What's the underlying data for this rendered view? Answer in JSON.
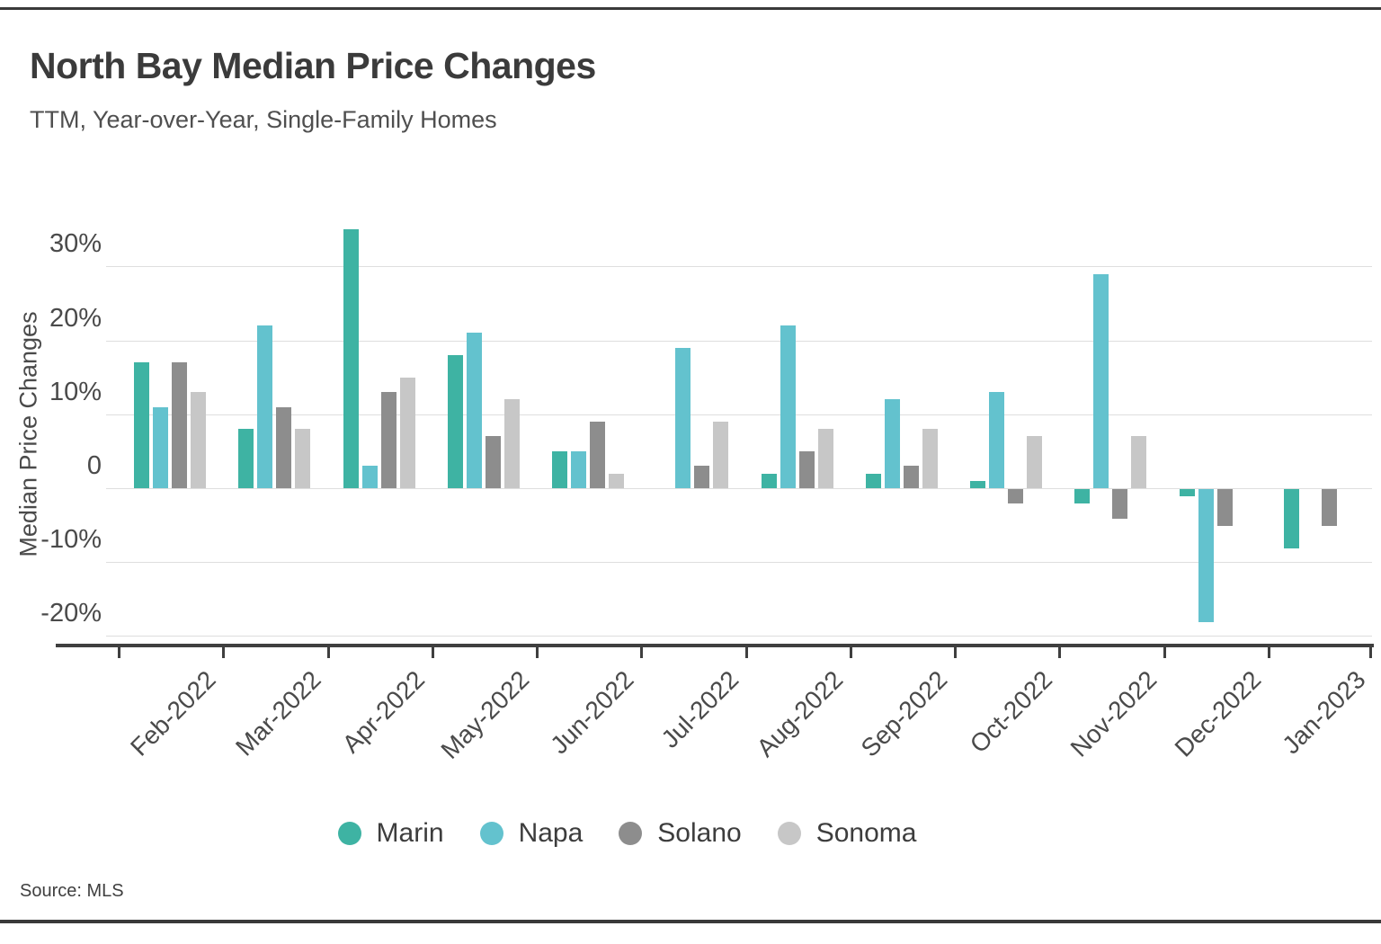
{
  "header": {
    "title": "North Bay Median Price Changes",
    "subtitle": "TTM, Year-over-Year, Single-Family Homes"
  },
  "source": {
    "text": "Source:  MLS"
  },
  "chart_data": {
    "type": "bar",
    "title": "North Bay Median Price Changes",
    "subtitle": "TTM, Year-over-Year, Single-Family Homes",
    "ylabel": "Median Price Changes",
    "xlabel": "",
    "categories": [
      "Feb-2022",
      "Mar-2022",
      "Apr-2022",
      "May-2022",
      "Jun-2022",
      "Jul-2022",
      "Aug-2022",
      "Sep-2022",
      "Oct-2022",
      "Nov-2022",
      "Dec-2022",
      "Jan-2023"
    ],
    "series": [
      {
        "name": "Marin",
        "color": "#3eb3a3",
        "values": [
          17,
          8,
          35,
          18,
          5,
          null,
          2,
          2,
          1,
          -2,
          -1,
          -8
        ]
      },
      {
        "name": "Napa",
        "color": "#63c2ce",
        "values": [
          11,
          22,
          3,
          21,
          5,
          19,
          22,
          12,
          13,
          29,
          -18,
          null
        ]
      },
      {
        "name": "Solano",
        "color": "#8d8d8d",
        "values": [
          17,
          11,
          13,
          7,
          9,
          3,
          5,
          3,
          -2,
          -4,
          -5,
          -5
        ]
      },
      {
        "name": "Sonoma",
        "color": "#c7c7c7",
        "values": [
          13,
          8,
          15,
          12,
          2,
          9,
          8,
          8,
          7,
          7,
          null,
          null
        ]
      }
    ],
    "yticks": [
      {
        "value": 30,
        "label": "30%"
      },
      {
        "value": 20,
        "label": "20%"
      },
      {
        "value": 10,
        "label": "10%"
      },
      {
        "value": 0,
        "label": "0"
      },
      {
        "value": -10,
        "label": "-10%"
      },
      {
        "value": -20,
        "label": "-20%"
      }
    ],
    "ylim": [
      -21,
      36
    ],
    "grid": true,
    "legend_position": "bottom",
    "units": "percent"
  }
}
